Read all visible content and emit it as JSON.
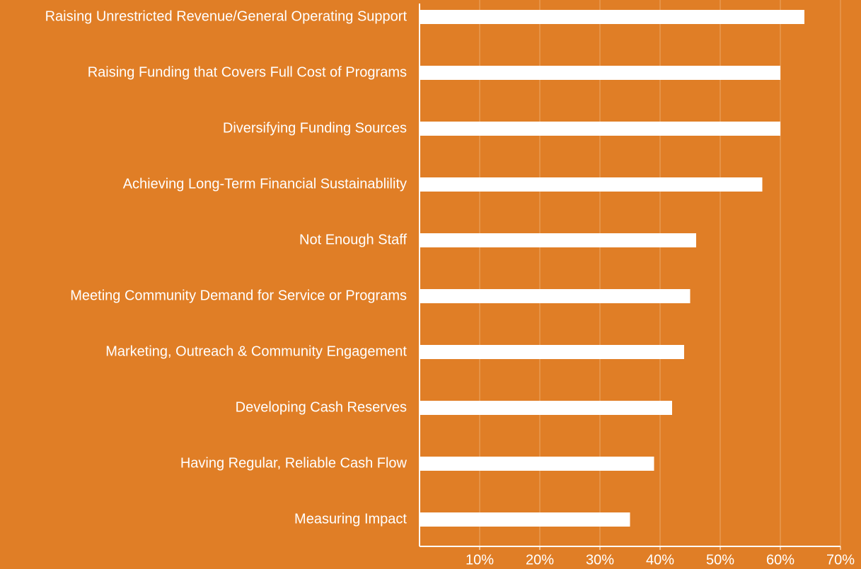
{
  "chart_data": {
    "type": "hbar",
    "categories": [
      "Raising Unrestricted Revenue/General Operating Support",
      "Raising Funding that Covers Full Cost of Programs",
      "Diversifying Funding Sources",
      "Achieving Long-Term Financial Sustainablility",
      "Not Enough Staff",
      "Meeting Community Demand for Service or Programs",
      "Marketing, Outreach & Community Engagement",
      "Developing Cash Reserves",
      "Having Regular, Reliable Cash Flow",
      "Measuring Impact"
    ],
    "values": [
      64,
      60,
      60,
      57,
      46,
      45,
      44,
      42,
      39,
      35
    ],
    "color": "#ffffff",
    "xlim": [
      0,
      70
    ],
    "xticks": [
      {
        "value": 10,
        "label": "10%"
      },
      {
        "value": 20,
        "label": "20%"
      },
      {
        "value": 30,
        "label": "30%"
      },
      {
        "value": 40,
        "label": "40%"
      },
      {
        "value": 50,
        "label": "50%"
      },
      {
        "value": 60,
        "label": "60%"
      },
      {
        "value": 70,
        "label": "70%"
      }
    ],
    "grid": true
  }
}
